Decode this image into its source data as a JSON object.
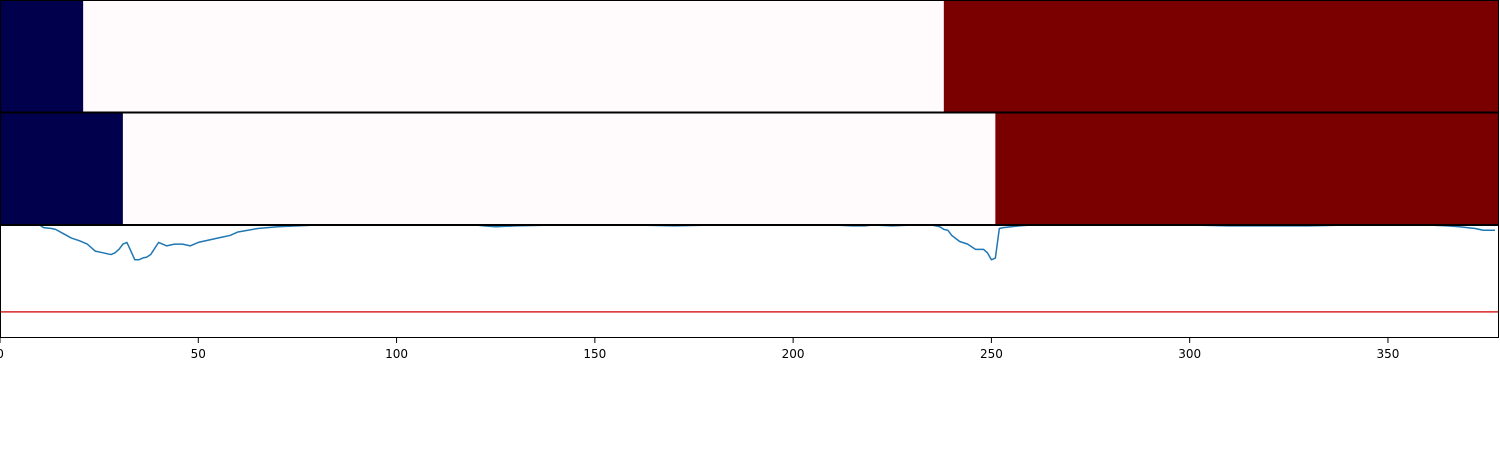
{
  "chart_data": {
    "type": "line",
    "xlim": [
      0,
      378
    ],
    "ylim": [
      -0.3,
      1.0
    ],
    "x_ticks": [
      0,
      50,
      100,
      150,
      200,
      250,
      300,
      350
    ],
    "x_tick_labels": [
      "0",
      "50",
      "100",
      "150",
      "200",
      "250",
      "300",
      "350"
    ],
    "heat_bands": [
      {
        "name": "",
        "segments": [
          {
            "start": 0,
            "end": 21,
            "color": "#00004c"
          },
          {
            "start": 21,
            "end": 238,
            "color": "#fffafb"
          },
          {
            "start": 238,
            "end": 378,
            "color": "#7a0000"
          }
        ]
      },
      {
        "name": "",
        "segments": [
          {
            "start": 0,
            "end": 31,
            "color": "#00004c"
          },
          {
            "start": 31,
            "end": 251,
            "color": "#fffafb"
          },
          {
            "start": 251,
            "end": 378,
            "color": "#7a0000"
          }
        ]
      }
    ],
    "series": [
      {
        "color": "#1f77b4",
        "x": [
          10,
          11,
          13,
          14,
          16,
          18,
          20,
          22,
          24,
          26,
          28,
          29,
          30,
          31,
          32,
          33,
          34,
          35,
          36,
          37,
          38,
          40,
          42,
          44,
          46,
          48,
          50,
          52,
          54,
          56,
          58,
          60,
          65,
          70,
          75,
          80,
          90,
          100,
          110,
          120,
          122,
          125,
          130,
          140,
          150,
          160,
          170,
          180,
          190,
          200,
          210,
          215,
          218,
          220,
          225,
          230,
          235,
          237,
          238,
          239,
          240,
          242,
          244,
          246,
          248,
          249,
          250,
          251,
          252,
          253,
          255,
          257,
          260,
          265,
          270,
          280,
          290,
          300,
          310,
          320,
          330,
          340,
          350,
          360,
          365,
          368,
          370,
          372,
          374,
          376,
          377
        ],
        "y": [
          1.0,
          0.97,
          0.96,
          0.95,
          0.9,
          0.85,
          0.82,
          0.78,
          0.7,
          0.68,
          0.66,
          0.68,
          0.72,
          0.78,
          0.8,
          0.7,
          0.6,
          0.6,
          0.62,
          0.63,
          0.66,
          0.8,
          0.76,
          0.78,
          0.78,
          0.76,
          0.8,
          0.82,
          0.84,
          0.86,
          0.88,
          0.92,
          0.96,
          0.98,
          0.99,
          1.0,
          1.0,
          1.0,
          1.0,
          1.0,
          0.99,
          0.98,
          0.99,
          1.0,
          1.0,
          1.0,
          0.99,
          1.0,
          1.0,
          1.0,
          1.0,
          0.99,
          0.99,
          1.0,
          0.99,
          1.0,
          1.0,
          0.98,
          0.95,
          0.94,
          0.88,
          0.81,
          0.78,
          0.72,
          0.72,
          0.68,
          0.6,
          0.62,
          0.96,
          0.97,
          0.98,
          0.99,
          1.0,
          1.0,
          1.0,
          1.0,
          1.0,
          1.0,
          0.99,
          0.99,
          0.99,
          1.0,
          1.0,
          1.0,
          0.99,
          0.98,
          0.97,
          0.96,
          0.94,
          0.94,
          0.94
        ]
      },
      {
        "color": "#d62728",
        "x": [
          0,
          378
        ],
        "y": [
          0.0,
          0.0
        ]
      }
    ]
  }
}
